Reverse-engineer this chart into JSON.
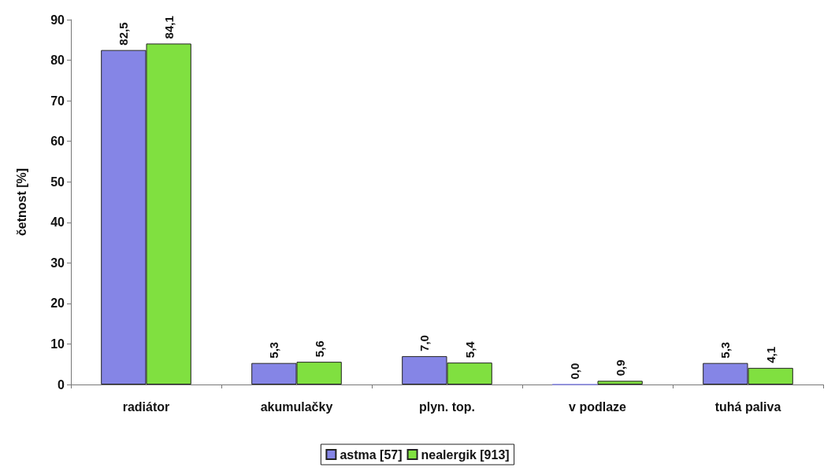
{
  "chart_data": {
    "type": "bar",
    "ylabel": "četnost [%]",
    "categories": [
      "radiátor",
      "akumulačky",
      "plyn. top.",
      "v podlaze",
      "tuhá paliva"
    ],
    "series": [
      {
        "name": "astma [57]",
        "color": "#8585e6",
        "values": [
          82.5,
          5.3,
          7.0,
          0.0,
          5.3
        ],
        "value_labels": [
          "82,5",
          "5,3",
          "7,0",
          "0,0",
          "5,3"
        ]
      },
      {
        "name": "nealergik [913]",
        "color": "#80e040",
        "values": [
          84.1,
          5.6,
          5.4,
          0.9,
          4.1
        ],
        "value_labels": [
          "84,1",
          "5,6",
          "5,4",
          "0,9",
          "4,1"
        ]
      }
    ],
    "ylim": [
      0,
      90
    ],
    "yticks": [
      0,
      10,
      20,
      30,
      40,
      50,
      60,
      70,
      80,
      90
    ],
    "grid": false,
    "legend": "bottom"
  }
}
